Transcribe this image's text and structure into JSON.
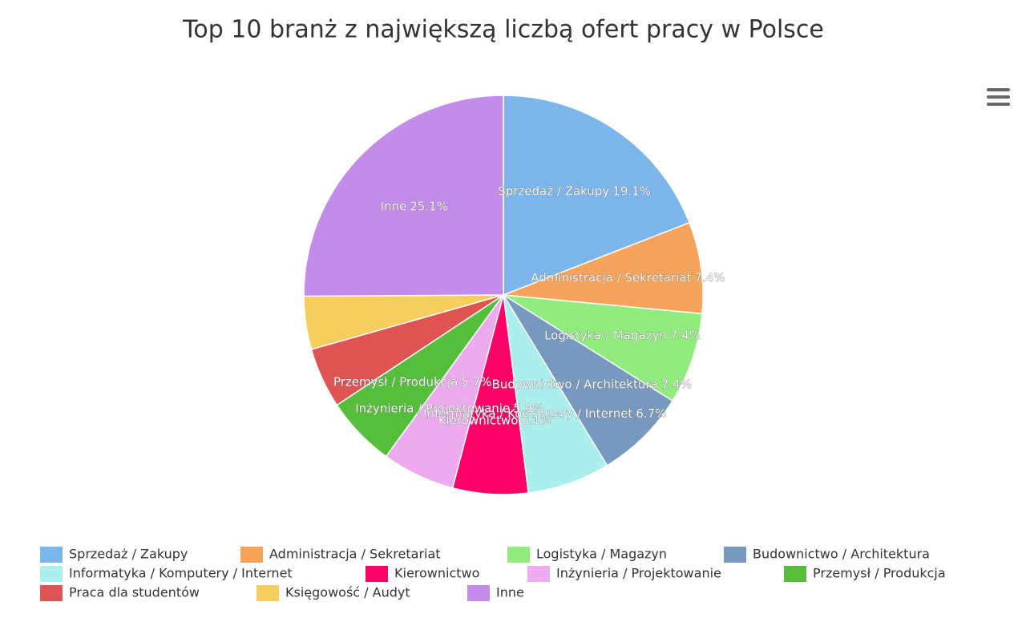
{
  "chart_data": {
    "type": "pie",
    "title": "Top 10 branż z największą liczbą ofert pracy w Polsce",
    "categories": [
      "Sprzedaż / Zakupy",
      "Administracja / Sekretariat",
      "Logistyka / Magazyn",
      "Budownictwo / Architektura",
      "Informatyka / Komputery / Internet",
      "Kierownictwo",
      "Inżynieria / Projektowanie",
      "Przemysł / Produkcja",
      "Praca dla studentów",
      "Księgowość / Audyt",
      "Inne"
    ],
    "values": [
      19.1,
      7.4,
      7.4,
      7.4,
      6.7,
      6.1,
      5.9,
      5.7,
      4.9,
      4.3,
      25.1
    ],
    "value_labels": [
      "19.1%",
      "7.4%",
      "7.4%",
      "7.4%",
      "6.7%",
      "6.1%",
      "5.9%",
      "5.7%",
      null,
      null,
      "25.1%"
    ],
    "colors": [
      "#7cb5ec",
      "#f7a35c",
      "#90ed7d",
      "#7798bf",
      "#aaeeee",
      "#ff0066",
      "#eeaaee",
      "#55bf3b",
      "#df5353",
      "#f7ce5d",
      "#c38ceb"
    ]
  }
}
